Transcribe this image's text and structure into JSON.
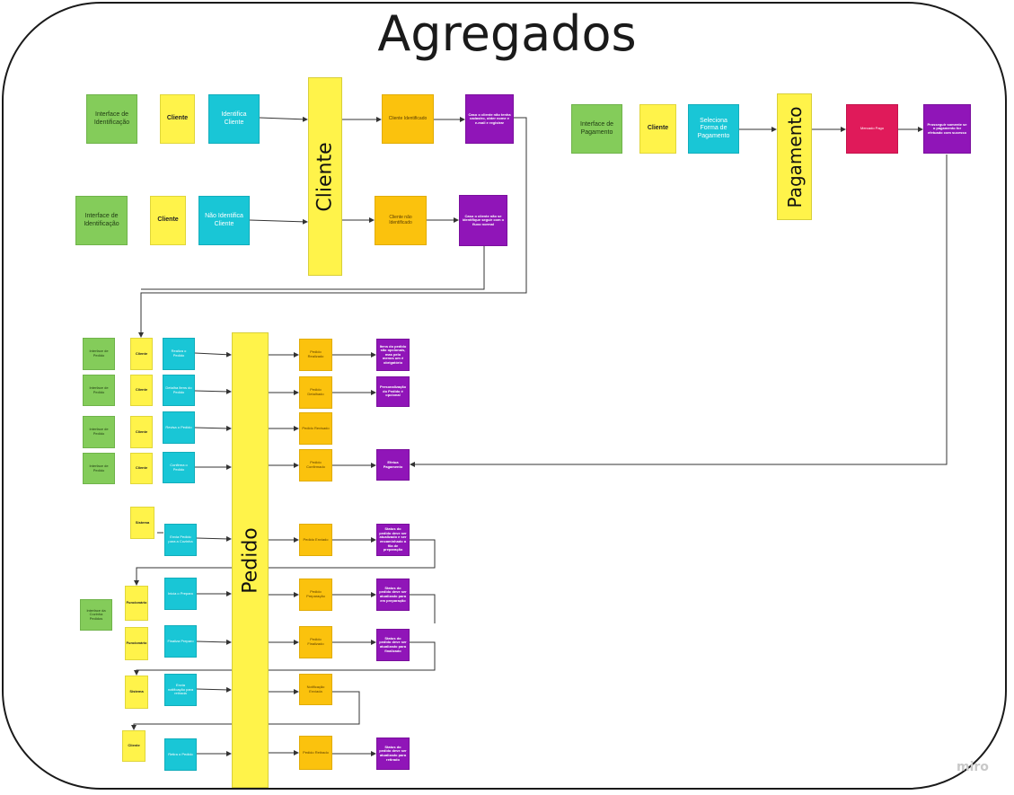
{
  "title": "Agregados",
  "watermark": "miro",
  "colors": {
    "domain_event": "#fbc20d",
    "command": "#19c6d6",
    "actor": "#fff34a",
    "read_model": "#84cc5a",
    "policy": "#9015b8",
    "hotspot": "#e01a5a",
    "aggregate": "#fff34a"
  },
  "aggregates": {
    "cliente": "Cliente",
    "pagamento": "Pagamento",
    "pedido": "Pedido"
  },
  "cliente_section": {
    "row1": {
      "read_model": "Interface de Identificação",
      "actor": "Cliente",
      "command": "Identifica Cliente",
      "event": "Cliente Identificado",
      "policy": "Caso o cliente não tenha cadastro, obter nome e e-mail e registrar"
    },
    "row2": {
      "read_model": "Interface de Identificação",
      "actor": "Cliente",
      "command": "Não Identifica Cliente",
      "event": "Cliente não Identificado",
      "policy": "Caso o cliente não se identifique seguir com o fluxo normal"
    }
  },
  "pagamento_section": {
    "read_model": "Interface de Pagamento",
    "actor": "Cliente",
    "command": "Seleciona Forma de Pagamento",
    "hotspot": "Mercado Pago",
    "policy": "Prosseguir somente se o pagamento for efetuado com sucesso"
  },
  "pedido_section": {
    "rows": [
      {
        "read_model": "Interface de Pedido",
        "actor": "Cliente",
        "command": "Realiza o Pedido",
        "event": "Pedido Realizado",
        "policy": "Itens do pedido são opcionais, mas pelo menos um é obrigatório"
      },
      {
        "read_model": "Interface de Pedido",
        "actor": "Cliente",
        "command": "Detalha Itens do Pedido",
        "event": "Pedido Detalhado",
        "policy": "Personalização do Pedido é opcional"
      },
      {
        "read_model": "Interface de Pedido",
        "actor": "Cliente",
        "command": "Revisa o Pedido",
        "event": "Pedido Revisado",
        "policy": ""
      },
      {
        "read_model": "Interface de Pedido",
        "actor": "Cliente",
        "command": "Confirma o Pedido",
        "event": "Pedido Confirmado",
        "policy": "Efetua Pagamento"
      }
    ],
    "sistema_1": "Sistema",
    "envia_cozinha": "Envia Pedido para a Cozinha",
    "pedido_enviado": "Pedido Enviado",
    "policy_enviado": "Status do pedido deve ser atualizado e ser encaminhado a fila de preparação",
    "read_model_cozinha": "Interface da Cozinha Pedidos",
    "funcionario_1": "Funcionário",
    "inicia_preparo": "Inicia o Preparo",
    "pedido_preparacao": "Pedido Preparação",
    "policy_preparacao": "Status do pedido deve ser atualizado para em preparação",
    "funcionario_2": "Funcionário",
    "finaliza_preparo": "Finaliza Preparo",
    "pedido_finalizado": "Pedido Finalizado",
    "policy_finalizado": "Status do pedido deve ser atualizado para finalizado",
    "sistema_2": "Sistema",
    "envia_notificacao": "Envia notificação para retirada",
    "notificacao_enviada": "Notificação Enviada",
    "cliente_final": "Cliente",
    "retira_pedido": "Retira o Pedido",
    "pedido_retirado": "Pedido Retirado",
    "policy_retirado": "Status do pedido deve ser atualizado para retirado"
  }
}
